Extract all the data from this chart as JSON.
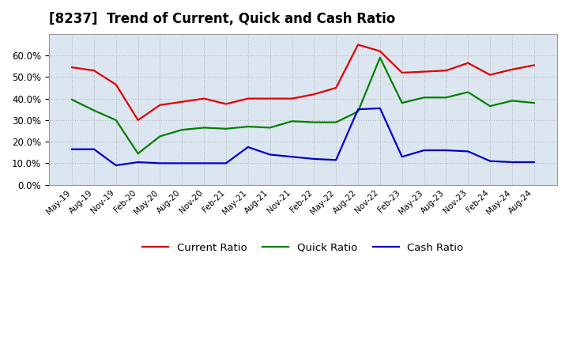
{
  "title": "[8237]  Trend of Current, Quick and Cash Ratio",
  "title_fontsize": 12,
  "x_labels": [
    "May-19",
    "Aug-19",
    "Nov-19",
    "Feb-20",
    "May-20",
    "Aug-20",
    "Nov-20",
    "Feb-21",
    "May-21",
    "Aug-21",
    "Nov-21",
    "Feb-22",
    "May-22",
    "Aug-22",
    "Nov-22",
    "Feb-23",
    "May-23",
    "Aug-23",
    "Nov-23",
    "Feb-24",
    "May-24",
    "Aug-24"
  ],
  "current_ratio": [
    54.5,
    53.0,
    46.5,
    30.0,
    37.0,
    38.5,
    40.0,
    37.5,
    40.0,
    40.0,
    40.0,
    42.0,
    45.0,
    65.0,
    62.0,
    52.0,
    52.5,
    53.0,
    56.5,
    51.0,
    53.5,
    55.5
  ],
  "quick_ratio": [
    39.5,
    34.5,
    30.0,
    14.5,
    22.5,
    25.5,
    26.5,
    26.0,
    27.0,
    26.5,
    29.5,
    29.0,
    29.0,
    34.0,
    59.0,
    38.0,
    40.5,
    40.5,
    43.0,
    36.5,
    39.0,
    38.0
  ],
  "cash_ratio": [
    16.5,
    16.5,
    9.0,
    10.5,
    10.0,
    10.0,
    10.0,
    10.0,
    17.5,
    14.0,
    13.0,
    12.0,
    11.5,
    35.0,
    35.5,
    13.0,
    16.0,
    16.0,
    15.5,
    11.0,
    10.5,
    10.5
  ],
  "current_color": "#e00000",
  "quick_color": "#008000",
  "cash_color": "#0000cc",
  "ylim": [
    0,
    70
  ],
  "yticks": [
    0,
    10,
    20,
    30,
    40,
    50,
    60
  ],
  "grid_color": "#bbbbbb",
  "bg_color": "#ffffff",
  "plot_bg_color": "#dce6f0"
}
